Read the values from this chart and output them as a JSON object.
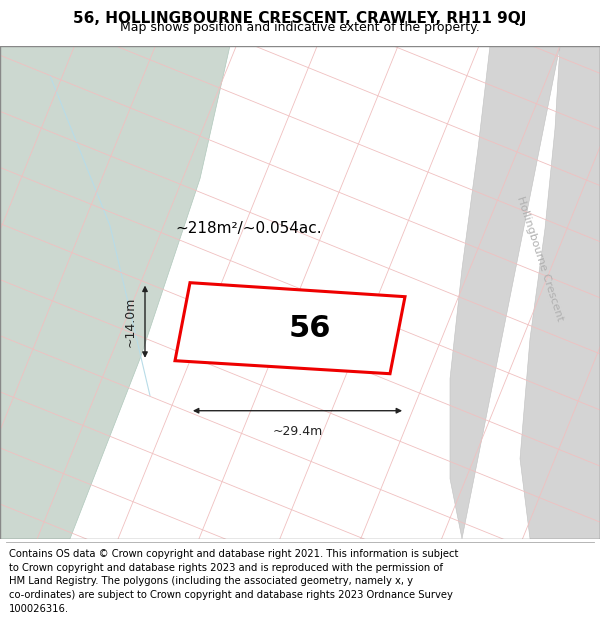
{
  "title_line1": "56, HOLLINGBOURNE CRESCENT, CRAWLEY, RH11 9QJ",
  "title_line2": "Map shows position and indicative extent of the property.",
  "footer_text": "Contains OS data © Crown copyright and database right 2021. This information is subject to Crown copyright and database rights 2023 and is reproduced with the permission of HM Land Registry. The polygons (including the associated geometry, namely x, y co-ordinates) are subject to Crown copyright and database rights 2023 Ordnance Survey 100026316.",
  "area_label": "~218m²/~0.054ac.",
  "number_label": "56",
  "width_label": "~29.4m",
  "height_label": "~14.0m",
  "bg_color": "#f5eeee",
  "green_color": "#ccd8d0",
  "green_edge_color": "#b0c8bc",
  "road_fill_color": "#d4d4d4",
  "road_edge_color": "#c0c0c0",
  "plot_edge_color": "#ee0000",
  "plot_fill_color": "#f0eeee",
  "grid_pink": "#f0c0c0",
  "grid_gray": "#d0d0d0",
  "dim_color": "#222222",
  "road_label_color": "#b0b0b0",
  "title_fontsize": 11,
  "subtitle_fontsize": 9,
  "footer_fontsize": 7.2,
  "label_fontsize": 11,
  "number_fontsize": 22,
  "dim_fontsize": 9,
  "road_fontsize": 8
}
